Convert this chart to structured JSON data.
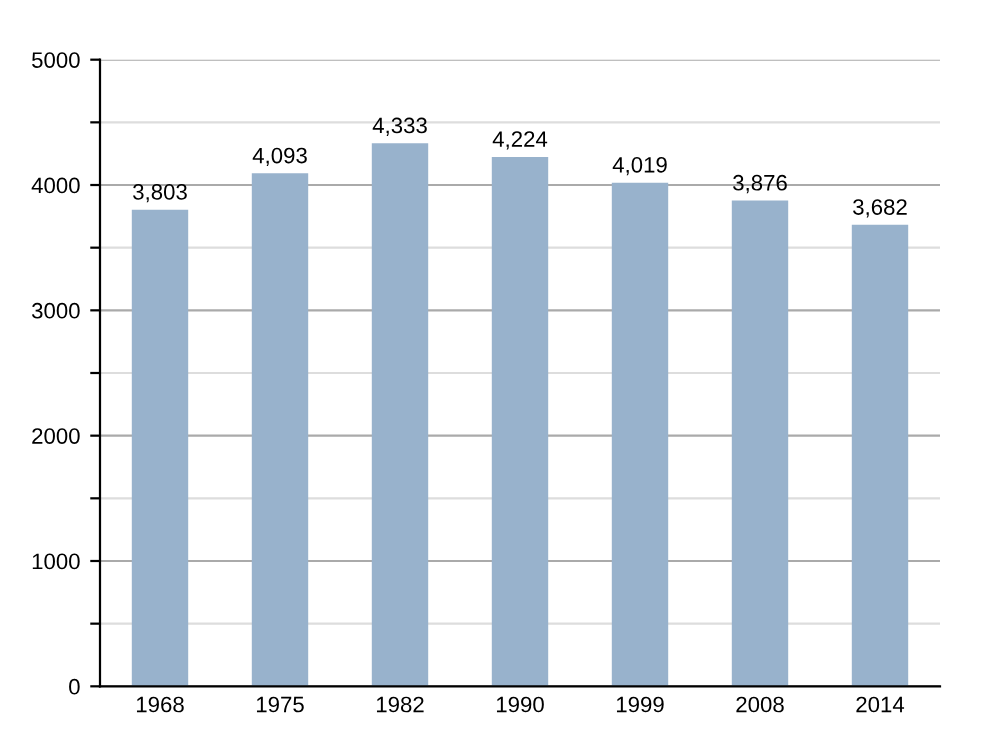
{
  "chart_data": {
    "type": "bar",
    "categories": [
      "1968",
      "1975",
      "1982",
      "1990",
      "1999",
      "2008",
      "2014"
    ],
    "values": [
      3803,
      4093,
      4333,
      4224,
      4019,
      3876,
      3682
    ],
    "value_labels": [
      "3,803",
      "4,093",
      "4,333",
      "4,224",
      "4,019",
      "3,876",
      "3,682"
    ],
    "color": "#98b2cc",
    "ylim": [
      0,
      5000
    ],
    "yticks": [
      0,
      {
        "value": 500,
        "label": null
      },
      1000,
      {
        "value": 1500,
        "label": null
      },
      2000,
      {
        "value": 2500,
        "label": null
      },
      3000,
      {
        "value": 3500,
        "label": null
      },
      4000,
      {
        "value": 4500,
        "label": null
      },
      5000
    ],
    "grid": "y"
  }
}
